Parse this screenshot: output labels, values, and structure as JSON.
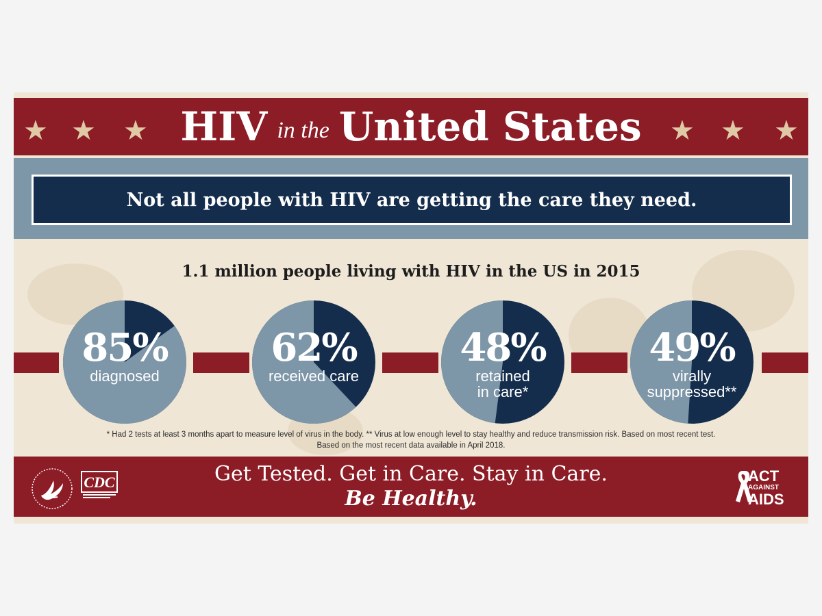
{
  "header": {
    "title_part1": "HIV",
    "title_part2": "in the",
    "title_part3": "United States"
  },
  "message": "Not all people with HIV are getting the care they need.",
  "subtitle": "1.1 million people living with HIV in the US in 2015",
  "chart_data": {
    "type": "pie",
    "series": [
      {
        "value": 85,
        "label_value": "85%",
        "label_lines": [
          "diagnosed"
        ]
      },
      {
        "value": 62,
        "label_value": "62%",
        "label_lines": [
          "received care"
        ]
      },
      {
        "value": 48,
        "label_value": "48%",
        "label_lines": [
          "retained",
          "in care*"
        ]
      },
      {
        "value": 49,
        "label_value": "49%",
        "label_lines": [
          "virally",
          "suppressed**"
        ]
      }
    ],
    "colors": {
      "light": "#7d96a8",
      "dark": "#142d4c"
    }
  },
  "footnote_line1": "* Had 2 tests at least 3 months apart to measure level of virus in the body. ** Virus at low enough level to stay healthy and reduce transmission risk. Based on most recent test.",
  "footnote_line2": "Based on the most recent data available in April 2018.",
  "tagline_line1": "Get Tested. Get in Care. Stay in Care.",
  "tagline_line2": "Be Healthy.",
  "logos": {
    "left1": "hhs-eagle-seal",
    "left2": "CDC",
    "right": [
      "ACT",
      "AGAINST",
      "AIDS"
    ]
  },
  "colors": {
    "red": "#8c1c26",
    "navy": "#142d4c",
    "slate": "#7d96a8",
    "paper": "#efe6d6",
    "star": "#e0c9a6"
  }
}
